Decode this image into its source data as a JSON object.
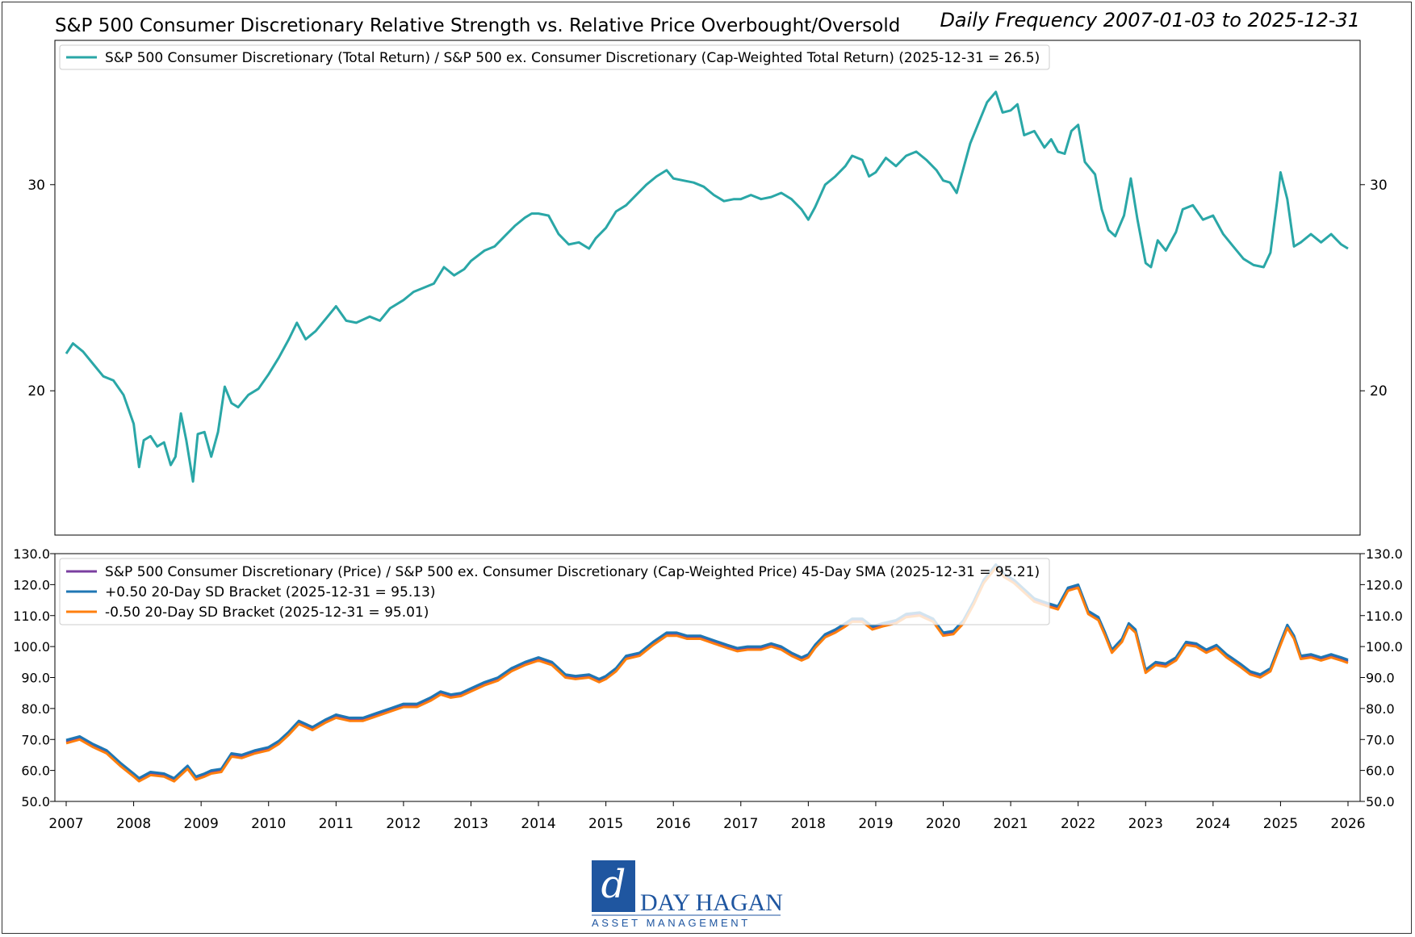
{
  "header": {
    "title": "S&P 500 Consumer Discretionary Relative Strength vs. Relative Price Overbought/Oversold",
    "subtitle": "Daily Frequency 2007-01-03 to 2025-12-31"
  },
  "logo": {
    "name": "DAY HAGAN",
    "tagline": "ASSET MANAGEMENT",
    "brand_color": "#1f56a0"
  },
  "chart_data": [
    {
      "type": "line",
      "panel": "top",
      "grid": false,
      "legend_position": "top-left",
      "ylim": [
        13,
        37
      ],
      "yticks": [
        20,
        30
      ],
      "series": [
        {
          "name": "S&P 500 Consumer Discretionary (Total Return) / S&P 500 ex. Consumer Discretionary (Cap-Weighted Total Return) (2025-12-31 = 26.5)",
          "color": "#2aa7a7",
          "points": [
            [
              2007.0,
              21.8
            ],
            [
              2007.1,
              22.3
            ],
            [
              2007.25,
              21.9
            ],
            [
              2007.4,
              21.3
            ],
            [
              2007.55,
              20.7
            ],
            [
              2007.7,
              20.5
            ],
            [
              2007.85,
              19.8
            ],
            [
              2008.0,
              18.4
            ],
            [
              2008.08,
              16.3
            ],
            [
              2008.15,
              17.6
            ],
            [
              2008.25,
              17.8
            ],
            [
              2008.35,
              17.3
            ],
            [
              2008.45,
              17.5
            ],
            [
              2008.55,
              16.4
            ],
            [
              2008.62,
              16.8
            ],
            [
              2008.7,
              18.9
            ],
            [
              2008.78,
              17.6
            ],
            [
              2008.88,
              15.6
            ],
            [
              2008.95,
              17.9
            ],
            [
              2009.05,
              18.0
            ],
            [
              2009.15,
              16.8
            ],
            [
              2009.25,
              18.0
            ],
            [
              2009.35,
              20.2
            ],
            [
              2009.45,
              19.4
            ],
            [
              2009.55,
              19.2
            ],
            [
              2009.7,
              19.8
            ],
            [
              2009.85,
              20.1
            ],
            [
              2010.0,
              20.8
            ],
            [
              2010.15,
              21.6
            ],
            [
              2010.3,
              22.5
            ],
            [
              2010.42,
              23.3
            ],
            [
              2010.55,
              22.5
            ],
            [
              2010.7,
              22.9
            ],
            [
              2010.85,
              23.5
            ],
            [
              2011.0,
              24.1
            ],
            [
              2011.15,
              23.4
            ],
            [
              2011.3,
              23.3
            ],
            [
              2011.5,
              23.6
            ],
            [
              2011.65,
              23.4
            ],
            [
              2011.8,
              24.0
            ],
            [
              2012.0,
              24.4
            ],
            [
              2012.15,
              24.8
            ],
            [
              2012.3,
              25.0
            ],
            [
              2012.45,
              25.2
            ],
            [
              2012.6,
              26.0
            ],
            [
              2012.75,
              25.6
            ],
            [
              2012.9,
              25.9
            ],
            [
              2013.0,
              26.3
            ],
            [
              2013.2,
              26.8
            ],
            [
              2013.35,
              27.0
            ],
            [
              2013.5,
              27.5
            ],
            [
              2013.65,
              28.0
            ],
            [
              2013.8,
              28.4
            ],
            [
              2013.9,
              28.6
            ],
            [
              2014.0,
              28.6
            ],
            [
              2014.15,
              28.5
            ],
            [
              2014.3,
              27.6
            ],
            [
              2014.45,
              27.1
            ],
            [
              2014.6,
              27.2
            ],
            [
              2014.75,
              26.9
            ],
            [
              2014.85,
              27.4
            ],
            [
              2015.0,
              27.9
            ],
            [
              2015.15,
              28.7
            ],
            [
              2015.3,
              29.0
            ],
            [
              2015.45,
              29.5
            ],
            [
              2015.6,
              30.0
            ],
            [
              2015.75,
              30.4
            ],
            [
              2015.9,
              30.7
            ],
            [
              2016.0,
              30.3
            ],
            [
              2016.15,
              30.2
            ],
            [
              2016.3,
              30.1
            ],
            [
              2016.45,
              29.9
            ],
            [
              2016.6,
              29.5
            ],
            [
              2016.75,
              29.2
            ],
            [
              2016.9,
              29.3
            ],
            [
              2017.0,
              29.3
            ],
            [
              2017.15,
              29.5
            ],
            [
              2017.3,
              29.3
            ],
            [
              2017.45,
              29.4
            ],
            [
              2017.6,
              29.6
            ],
            [
              2017.75,
              29.3
            ],
            [
              2017.9,
              28.8
            ],
            [
              2018.0,
              28.3
            ],
            [
              2018.1,
              28.9
            ],
            [
              2018.25,
              30.0
            ],
            [
              2018.4,
              30.4
            ],
            [
              2018.55,
              30.9
            ],
            [
              2018.65,
              31.4
            ],
            [
              2018.8,
              31.2
            ],
            [
              2018.9,
              30.4
            ],
            [
              2019.0,
              30.6
            ],
            [
              2019.15,
              31.3
            ],
            [
              2019.3,
              30.9
            ],
            [
              2019.45,
              31.4
            ],
            [
              2019.6,
              31.6
            ],
            [
              2019.75,
              31.2
            ],
            [
              2019.9,
              30.7
            ],
            [
              2020.0,
              30.2
            ],
            [
              2020.1,
              30.1
            ],
            [
              2020.2,
              29.6
            ],
            [
              2020.3,
              30.8
            ],
            [
              2020.4,
              32.0
            ],
            [
              2020.55,
              33.2
            ],
            [
              2020.65,
              34.0
            ],
            [
              2020.78,
              34.5
            ],
            [
              2020.88,
              33.5
            ],
            [
              2021.0,
              33.6
            ],
            [
              2021.1,
              33.9
            ],
            [
              2021.2,
              32.4
            ],
            [
              2021.35,
              32.6
            ],
            [
              2021.5,
              31.8
            ],
            [
              2021.6,
              32.2
            ],
            [
              2021.7,
              31.6
            ],
            [
              2021.8,
              31.5
            ],
            [
              2021.9,
              32.6
            ],
            [
              2022.0,
              32.9
            ],
            [
              2022.1,
              31.1
            ],
            [
              2022.25,
              30.5
            ],
            [
              2022.35,
              28.8
            ],
            [
              2022.45,
              27.8
            ],
            [
              2022.55,
              27.5
            ],
            [
              2022.68,
              28.5
            ],
            [
              2022.78,
              30.3
            ],
            [
              2022.88,
              28.3
            ],
            [
              2023.0,
              26.2
            ],
            [
              2023.08,
              26.0
            ],
            [
              2023.18,
              27.3
            ],
            [
              2023.3,
              26.8
            ],
            [
              2023.45,
              27.7
            ],
            [
              2023.55,
              28.8
            ],
            [
              2023.7,
              29.0
            ],
            [
              2023.85,
              28.3
            ],
            [
              2024.0,
              28.5
            ],
            [
              2024.15,
              27.6
            ],
            [
              2024.3,
              27.0
            ],
            [
              2024.45,
              26.4
            ],
            [
              2024.6,
              26.1
            ],
            [
              2024.75,
              26.0
            ],
            [
              2024.85,
              26.7
            ],
            [
              2024.95,
              29.2
            ],
            [
              2025.0,
              30.6
            ],
            [
              2025.1,
              29.3
            ],
            [
              2025.2,
              27.0
            ],
            [
              2025.3,
              27.2
            ],
            [
              2025.45,
              27.6
            ],
            [
              2025.6,
              27.2
            ],
            [
              2025.75,
              27.6
            ],
            [
              2025.9,
              27.1
            ],
            [
              2026.0,
              26.9
            ]
          ]
        }
      ]
    },
    {
      "type": "line",
      "panel": "bottom",
      "grid": false,
      "legend_position": "top-left",
      "x_ticks": [
        2007,
        2008,
        2009,
        2010,
        2011,
        2012,
        2013,
        2014,
        2015,
        2016,
        2017,
        2018,
        2019,
        2020,
        2021,
        2022,
        2023,
        2024,
        2025,
        2026
      ],
      "ylim": [
        50,
        130
      ],
      "yticks": [
        "50.0",
        "60.0",
        "70.0",
        "80.0",
        "90.0",
        "100.0",
        "110.0",
        "120.0",
        "130.0"
      ],
      "series": [
        {
          "name": "S&P 500 Consumer Discretionary (Price) / S&P 500 ex. Consumer Discretionary (Cap-Weighted Price) 45-Day SMA (2025-12-31 = 95.21)",
          "color": "#7b3fa0",
          "offset": 0
        },
        {
          "name": "+0.50 20-Day SD Bracket (2025-12-31 = 95.13)",
          "color": "#1f77b4",
          "offset": 0.5
        },
        {
          "name": "-0.50 20-Day SD Bracket (2025-12-31 = 95.01)",
          "color": "#ff7f0e",
          "offset": -0.5
        }
      ],
      "base_points": [
        [
          2007.0,
          69.3
        ],
        [
          2007.2,
          70.5
        ],
        [
          2007.4,
          68.0
        ],
        [
          2007.6,
          66.0
        ],
        [
          2007.8,
          62.0
        ],
        [
          2008.0,
          58.5
        ],
        [
          2008.08,
          57.0
        ],
        [
          2008.25,
          59.0
        ],
        [
          2008.45,
          58.5
        ],
        [
          2008.6,
          57.0
        ],
        [
          2008.8,
          61.0
        ],
        [
          2008.92,
          57.5
        ],
        [
          2009.05,
          58.5
        ],
        [
          2009.15,
          59.5
        ],
        [
          2009.3,
          60.0
        ],
        [
          2009.45,
          65.0
        ],
        [
          2009.6,
          64.5
        ],
        [
          2009.8,
          66.0
        ],
        [
          2010.0,
          67.0
        ],
        [
          2010.15,
          69.0
        ],
        [
          2010.3,
          72.0
        ],
        [
          2010.45,
          75.5
        ],
        [
          2010.65,
          73.5
        ],
        [
          2010.85,
          76.0
        ],
        [
          2011.0,
          77.5
        ],
        [
          2011.2,
          76.5
        ],
        [
          2011.4,
          76.5
        ],
        [
          2011.6,
          78.0
        ],
        [
          2011.8,
          79.5
        ],
        [
          2012.0,
          81.0
        ],
        [
          2012.2,
          81.0
        ],
        [
          2012.4,
          83.0
        ],
        [
          2012.55,
          85.0
        ],
        [
          2012.7,
          84.0
        ],
        [
          2012.85,
          84.5
        ],
        [
          2013.0,
          86.0
        ],
        [
          2013.2,
          88.0
        ],
        [
          2013.4,
          89.5
        ],
        [
          2013.6,
          92.5
        ],
        [
          2013.8,
          94.5
        ],
        [
          2014.0,
          96.0
        ],
        [
          2014.2,
          94.5
        ],
        [
          2014.4,
          90.5
        ],
        [
          2014.55,
          90.0
        ],
        [
          2014.75,
          90.5
        ],
        [
          2014.9,
          89.0
        ],
        [
          2015.0,
          90.0
        ],
        [
          2015.15,
          92.5
        ],
        [
          2015.3,
          96.5
        ],
        [
          2015.5,
          97.5
        ],
        [
          2015.7,
          101.0
        ],
        [
          2015.9,
          104.0
        ],
        [
          2016.05,
          104.0
        ],
        [
          2016.2,
          103.0
        ],
        [
          2016.4,
          103.0
        ],
        [
          2016.6,
          101.5
        ],
        [
          2016.8,
          100.0
        ],
        [
          2016.95,
          99.0
        ],
        [
          2017.1,
          99.5
        ],
        [
          2017.3,
          99.5
        ],
        [
          2017.45,
          100.5
        ],
        [
          2017.6,
          99.5
        ],
        [
          2017.75,
          97.5
        ],
        [
          2017.9,
          96.0
        ],
        [
          2018.0,
          97.0
        ],
        [
          2018.1,
          100.0
        ],
        [
          2018.25,
          103.5
        ],
        [
          2018.4,
          105.0
        ],
        [
          2018.55,
          107.0
        ],
        [
          2018.65,
          108.5
        ],
        [
          2018.8,
          108.5
        ],
        [
          2018.95,
          106.0
        ],
        [
          2019.1,
          107.0
        ],
        [
          2019.3,
          108.0
        ],
        [
          2019.45,
          110.0
        ],
        [
          2019.65,
          110.5
        ],
        [
          2019.85,
          108.5
        ],
        [
          2020.0,
          104.0
        ],
        [
          2020.15,
          104.5
        ],
        [
          2020.3,
          108.0
        ],
        [
          2020.45,
          114.0
        ],
        [
          2020.6,
          121.0
        ],
        [
          2020.78,
          126.0
        ],
        [
          2020.9,
          123.0
        ],
        [
          2021.05,
          121.0
        ],
        [
          2021.2,
          118.0
        ],
        [
          2021.35,
          115.0
        ],
        [
          2021.55,
          113.5
        ],
        [
          2021.7,
          112.5
        ],
        [
          2021.85,
          118.5
        ],
        [
          2022.0,
          119.5
        ],
        [
          2022.15,
          111.0
        ],
        [
          2022.3,
          109.0
        ],
        [
          2022.4,
          104.0
        ],
        [
          2022.5,
          98.5
        ],
        [
          2022.65,
          102.0
        ],
        [
          2022.75,
          107.0
        ],
        [
          2022.85,
          105.0
        ],
        [
          2023.0,
          92.0
        ],
        [
          2023.15,
          94.5
        ],
        [
          2023.3,
          94.0
        ],
        [
          2023.45,
          96.0
        ],
        [
          2023.6,
          101.0
        ],
        [
          2023.75,
          100.5
        ],
        [
          2023.9,
          98.5
        ],
        [
          2024.05,
          100.0
        ],
        [
          2024.2,
          97.0
        ],
        [
          2024.4,
          94.0
        ],
        [
          2024.55,
          91.5
        ],
        [
          2024.7,
          90.5
        ],
        [
          2024.85,
          92.5
        ],
        [
          2025.0,
          101.0
        ],
        [
          2025.1,
          106.5
        ],
        [
          2025.2,
          103.0
        ],
        [
          2025.3,
          96.5
        ],
        [
          2025.45,
          97.0
        ],
        [
          2025.6,
          96.0
        ],
        [
          2025.75,
          97.0
        ],
        [
          2025.9,
          96.0
        ],
        [
          2026.0,
          95.2
        ]
      ]
    }
  ]
}
